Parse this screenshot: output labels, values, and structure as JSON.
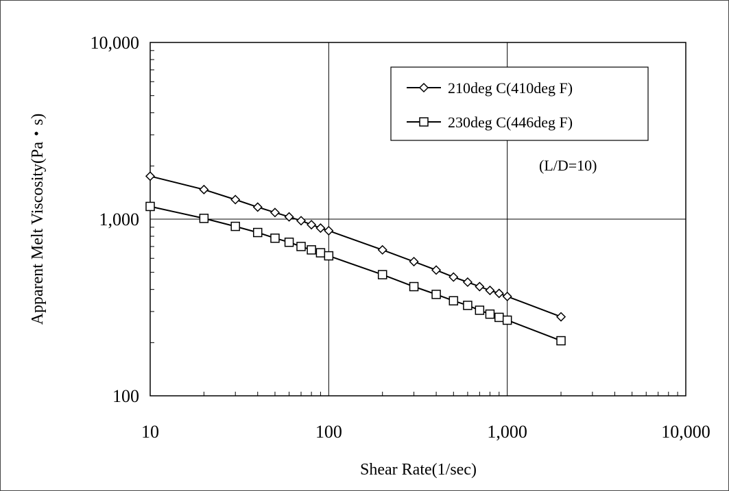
{
  "chart_data": {
    "type": "line",
    "xlabel": "Shear Rate(1/sec)",
    "ylabel": "Apparent Melt Viscosity(Pa・s)",
    "x_scale": "log",
    "y_scale": "log",
    "xlim": [
      10,
      10000
    ],
    "ylim": [
      100,
      10000
    ],
    "x_ticks": [
      10,
      100,
      1000,
      10000
    ],
    "x_tick_labels": [
      "10",
      "100",
      "1,000",
      "10,000"
    ],
    "y_ticks": [
      100,
      1000,
      10000
    ],
    "y_tick_labels": [
      "100",
      "1,000",
      "10,000"
    ],
    "grid": "major",
    "legend_position": "top-right",
    "annotation": "(L/D=10)",
    "series": [
      {
        "name": "210deg C(410deg F)",
        "marker": "diamond",
        "x": [
          10,
          20,
          30,
          40,
          50,
          60,
          70,
          80,
          90,
          100,
          200,
          300,
          400,
          500,
          600,
          700,
          800,
          900,
          1000,
          2000
        ],
        "y": [
          1750,
          1470,
          1290,
          1170,
          1090,
          1030,
          980,
          930,
          890,
          860,
          670,
          575,
          515,
          470,
          440,
          415,
          395,
          380,
          365,
          280
        ]
      },
      {
        "name": "230deg C(446deg F)",
        "marker": "square",
        "x": [
          10,
          20,
          30,
          40,
          50,
          60,
          70,
          80,
          90,
          100,
          200,
          300,
          400,
          500,
          600,
          700,
          800,
          900,
          1000,
          2000
        ],
        "y": [
          1180,
          1010,
          910,
          840,
          780,
          740,
          700,
          670,
          645,
          620,
          485,
          415,
          375,
          345,
          325,
          305,
          290,
          278,
          268,
          205
        ]
      }
    ]
  }
}
